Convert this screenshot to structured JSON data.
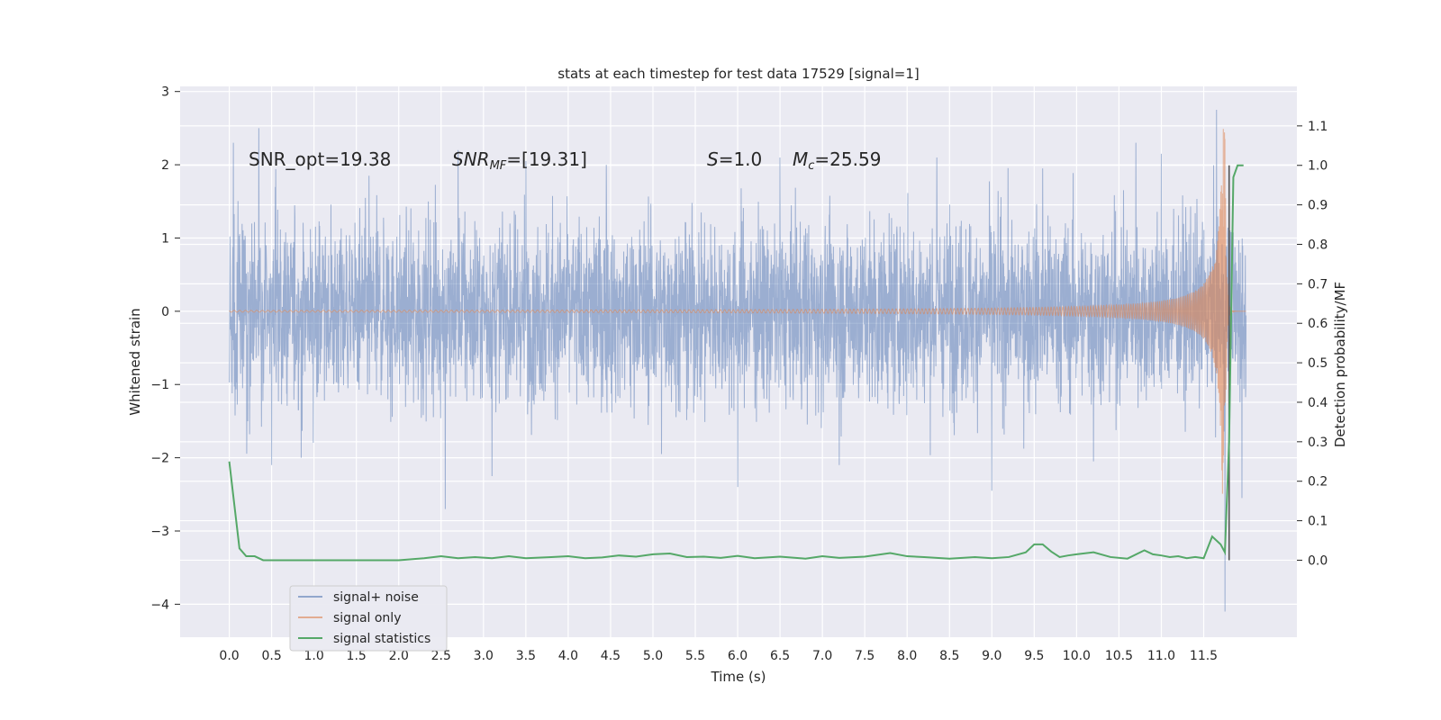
{
  "chart_data": {
    "type": "line",
    "title": "stats at each timestep for test data 17529 [signal=1]",
    "xlabel": "Time (s)",
    "ylabel": "Whitened strain",
    "y2label": "Detection probability/MF",
    "xlim": [
      -0.58,
      12.6
    ],
    "ylim": [
      -4.45,
      3.07
    ],
    "y2lim": [
      -0.195,
      1.2
    ],
    "x_ticks": [
      "0.0",
      "0.5",
      "1.0",
      "1.5",
      "2.0",
      "2.5",
      "3.0",
      "3.5",
      "4.0",
      "4.5",
      "5.0",
      "5.5",
      "6.0",
      "6.5",
      "7.0",
      "7.5",
      "8.0",
      "8.5",
      "9.0",
      "9.5",
      "10.0",
      "10.5",
      "11.0",
      "11.5"
    ],
    "y_ticks": [
      "3",
      "2",
      "1",
      "0",
      "−1",
      "−2",
      "−3",
      "−4"
    ],
    "y2_ticks": [
      "1.1",
      "1.0",
      "0.9",
      "0.8",
      "0.7",
      "0.6",
      "0.5",
      "0.4",
      "0.3",
      "0.2",
      "0.1",
      "0.0"
    ],
    "grid": true,
    "legend_position": "lower-left",
    "annotations": {
      "snr_opt": "SNR_opt=19.38",
      "snr_mf_base": "SNR",
      "snr_mf_sub": "MF",
      "snr_mf_val": "=[19.31]",
      "s_sym": "S",
      "s_val": "=1.0",
      "mc_sym": "M",
      "mc_sub": "c",
      "mc_val": "=25.59"
    },
    "series": [
      {
        "name": "signal+ noise",
        "color": "#4c72b0",
        "description_axis": "left",
        "x_range": [
          0.0,
          12.0
        ],
        "amplitude_envelope": [
          [
            0.0,
            1.3
          ],
          [
            12.0,
            1.3
          ]
        ],
        "spikes": [
          [
            0.05,
            2.3
          ],
          [
            0.35,
            2.5
          ],
          [
            0.5,
            -2.1
          ],
          [
            0.85,
            -2.0
          ],
          [
            1.65,
            1.85
          ],
          [
            2.55,
            -2.7
          ],
          [
            2.7,
            2.2
          ],
          [
            3.1,
            -2.25
          ],
          [
            3.5,
            2.05
          ],
          [
            4.45,
            2.0
          ],
          [
            5.1,
            -1.95
          ],
          [
            6.0,
            -2.4
          ],
          [
            6.5,
            2.1
          ],
          [
            7.2,
            -2.1
          ],
          [
            8.35,
            2.1
          ],
          [
            9.0,
            -2.45
          ],
          [
            9.6,
            1.95
          ],
          [
            10.2,
            -2.05
          ],
          [
            10.7,
            2.3
          ],
          [
            11.0,
            2.15
          ],
          [
            11.65,
            2.75
          ],
          [
            11.75,
            -4.1
          ],
          [
            11.95,
            -2.55
          ]
        ]
      },
      {
        "name": "signal only",
        "color": "#dd8452",
        "description_axis": "left",
        "x_range": [
          0.0,
          12.0
        ],
        "chirp_start": 6.5,
        "merger_time": 11.75,
        "merger_amplitude": 2.5
      },
      {
        "name": "signal statistics",
        "color": "#55a868",
        "description_axis": "right",
        "x": [
          0.0,
          0.12,
          0.2,
          0.3,
          0.4,
          0.5,
          1.0,
          1.5,
          2.0,
          2.3,
          2.5,
          2.7,
          2.9,
          3.1,
          3.3,
          3.5,
          3.8,
          4.0,
          4.2,
          4.4,
          4.6,
          4.8,
          5.0,
          5.2,
          5.4,
          5.6,
          5.8,
          6.0,
          6.2,
          6.5,
          6.8,
          7.0,
          7.2,
          7.5,
          7.8,
          8.0,
          8.2,
          8.5,
          8.8,
          9.0,
          9.2,
          9.4,
          9.5,
          9.6,
          9.7,
          9.8,
          9.9,
          10.0,
          10.2,
          10.4,
          10.6,
          10.8,
          10.9,
          11.0,
          11.1,
          11.2,
          11.3,
          11.4,
          11.5,
          11.6,
          11.7,
          11.75,
          11.8,
          11.85,
          11.9,
          11.97
        ],
        "values": [
          0.25,
          0.03,
          0.01,
          0.01,
          0.0,
          0.0,
          0.0,
          0.0,
          0.0,
          0.005,
          0.01,
          0.005,
          0.008,
          0.005,
          0.01,
          0.005,
          0.008,
          0.01,
          0.005,
          0.007,
          0.012,
          0.009,
          0.015,
          0.017,
          0.008,
          0.009,
          0.006,
          0.011,
          0.005,
          0.009,
          0.004,
          0.01,
          0.006,
          0.009,
          0.018,
          0.01,
          0.008,
          0.004,
          0.008,
          0.005,
          0.008,
          0.02,
          0.04,
          0.04,
          0.022,
          0.008,
          0.012,
          0.015,
          0.02,
          0.008,
          0.004,
          0.025,
          0.015,
          0.012,
          0.008,
          0.01,
          0.005,
          0.008,
          0.005,
          0.06,
          0.04,
          0.02,
          0.3,
          0.97,
          1.0,
          1.0
        ]
      }
    ],
    "vertical_marker": {
      "x": 11.8,
      "color": "#555555"
    }
  }
}
